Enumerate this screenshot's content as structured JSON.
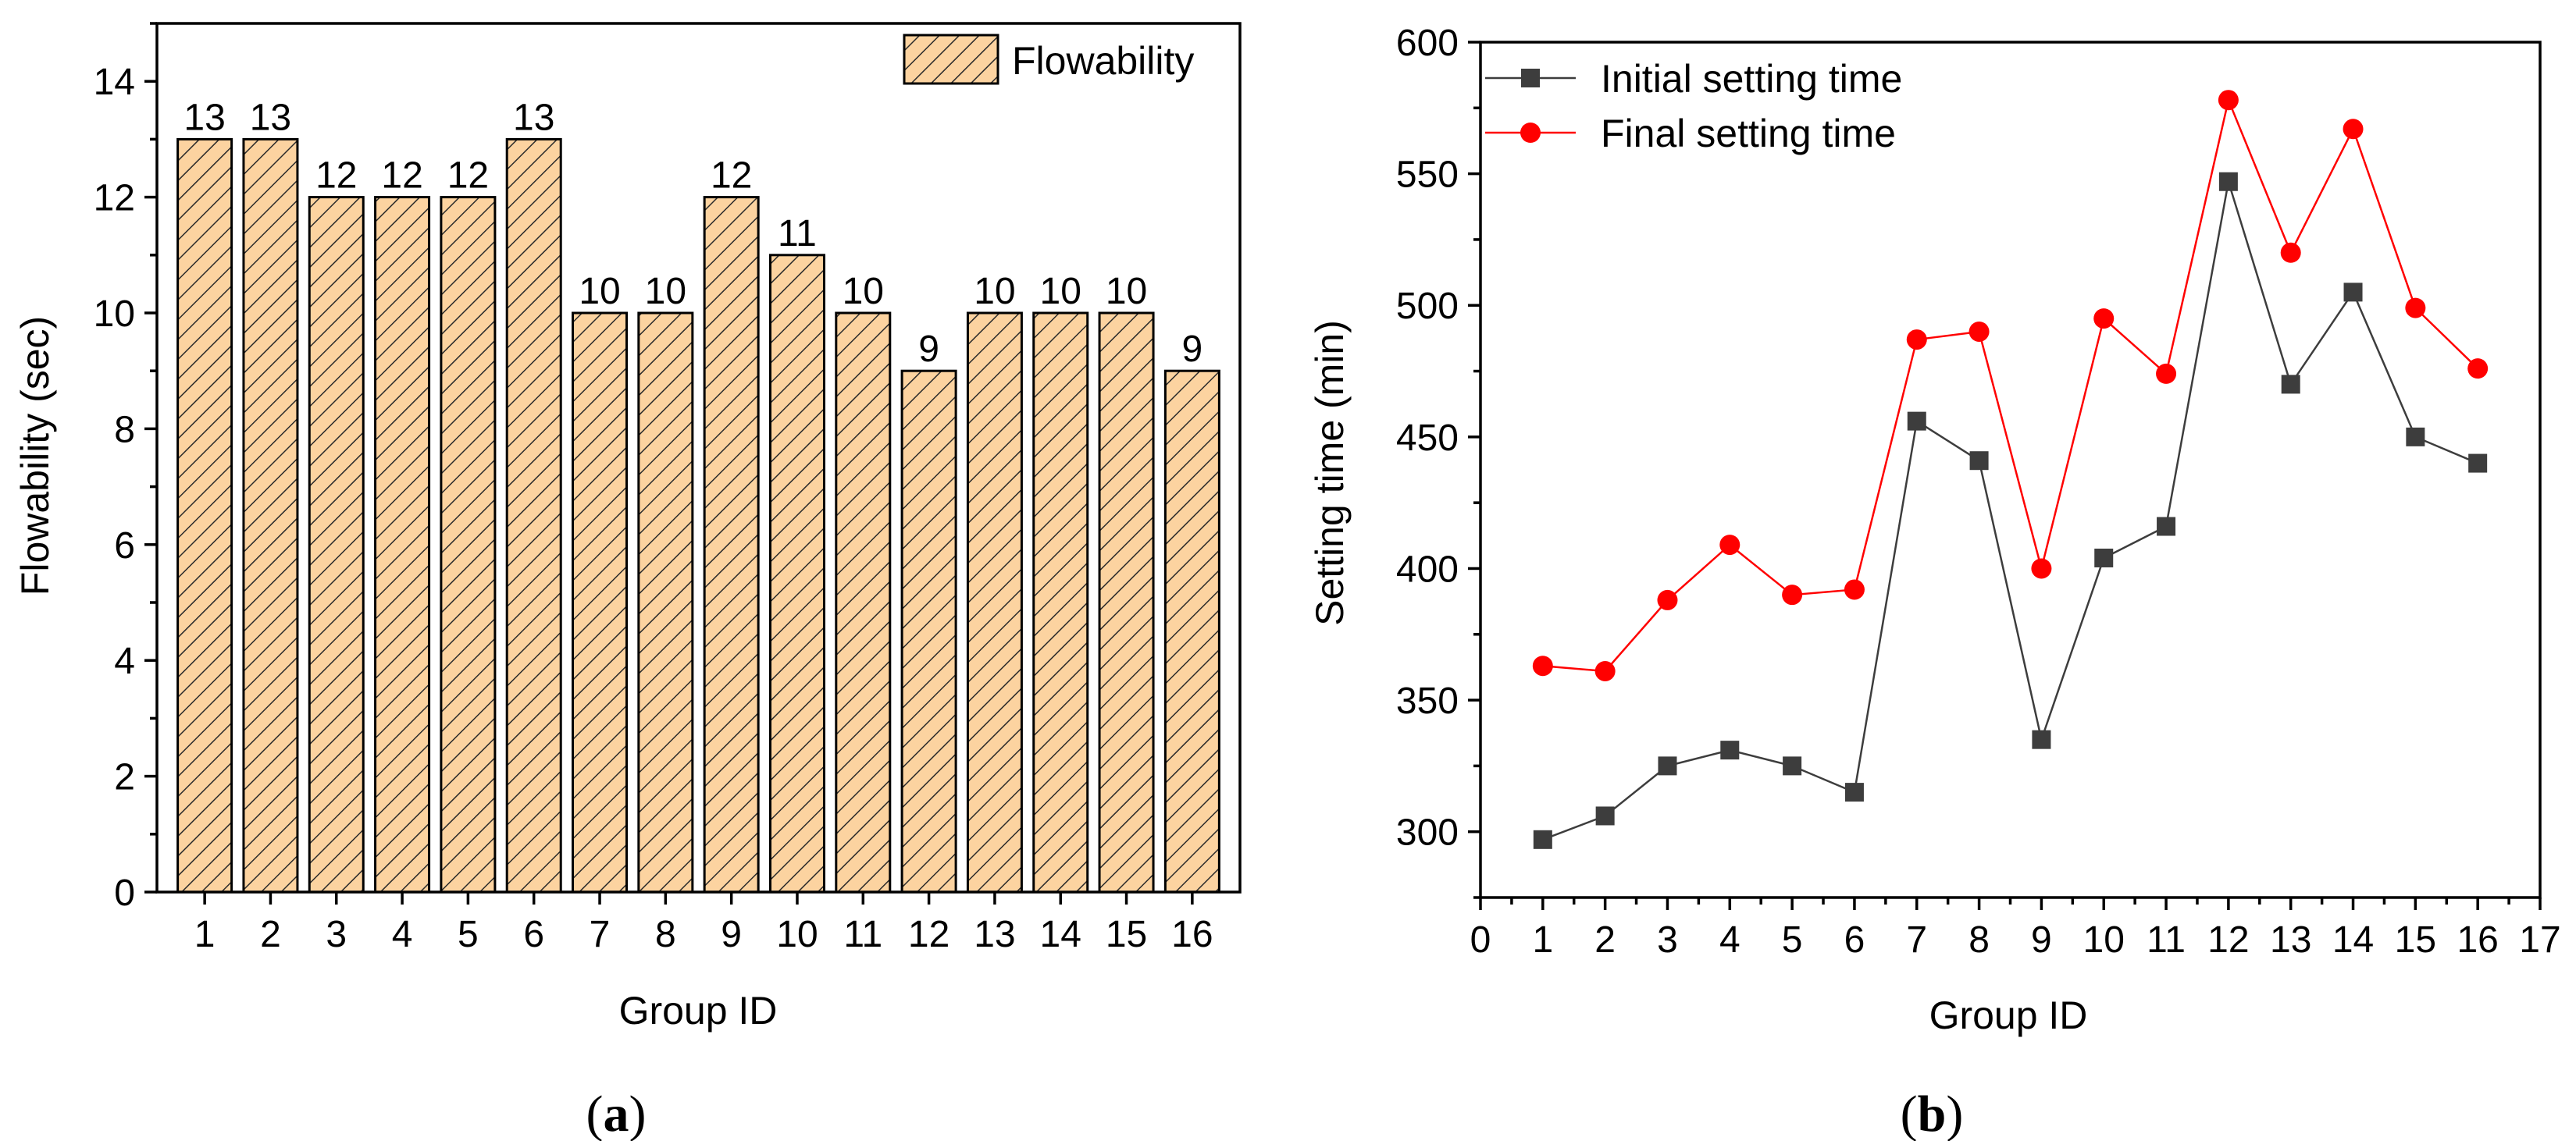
{
  "chart_data": [
    {
      "type": "bar",
      "panel_label": {
        "open": "(",
        "letter": "a",
        "close": ")"
      },
      "title": "",
      "xlabel": "Group ID",
      "ylabel": "Flowability (sec)",
      "ylim": [
        0,
        15
      ],
      "yticks": [
        0,
        2,
        4,
        6,
        8,
        10,
        12,
        14
      ],
      "categories": [
        "1",
        "2",
        "3",
        "4",
        "5",
        "6",
        "7",
        "8",
        "9",
        "10",
        "11",
        "12",
        "13",
        "14",
        "15",
        "16"
      ],
      "series": [
        {
          "name": "Flowability",
          "values": [
            13,
            13,
            12,
            12,
            12,
            13,
            10,
            10,
            12,
            11,
            10,
            9,
            10,
            10,
            10,
            9
          ],
          "fill": "#fcd3a0",
          "hatch": "diagonal"
        }
      ],
      "data_labels": true,
      "legend": {
        "position": "top-right",
        "entries": [
          "Flowability"
        ]
      }
    },
    {
      "type": "line",
      "panel_label": {
        "open": "(",
        "letter": "b",
        "close": ")"
      },
      "title": "",
      "xlabel": "Group ID",
      "ylabel": "Setting time (min)",
      "xlim": [
        0,
        17
      ],
      "ylim": [
        275,
        600
      ],
      "xticks": [
        0,
        1,
        2,
        3,
        4,
        5,
        6,
        7,
        8,
        9,
        10,
        11,
        12,
        13,
        14,
        15,
        16,
        17
      ],
      "yticks": [
        300,
        350,
        400,
        450,
        500,
        550,
        600
      ],
      "x": [
        1,
        2,
        3,
        4,
        5,
        6,
        7,
        8,
        9,
        10,
        11,
        12,
        13,
        14,
        15,
        16
      ],
      "series": [
        {
          "name": "Initial setting time",
          "values": [
            297,
            306,
            325,
            331,
            325,
            315,
            456,
            441,
            335,
            404,
            416,
            547,
            470,
            505,
            450,
            440
          ],
          "color": "#3d3d3d",
          "marker": "square"
        },
        {
          "name": "Final setting time",
          "values": [
            363,
            361,
            388,
            409,
            390,
            392,
            487,
            490,
            400,
            495,
            474,
            578,
            520,
            567,
            499,
            476
          ],
          "color": "#ff0000",
          "marker": "circle"
        }
      ],
      "legend": {
        "position": "top-left",
        "entries": [
          "Initial setting time",
          "Final setting time"
        ]
      }
    }
  ]
}
